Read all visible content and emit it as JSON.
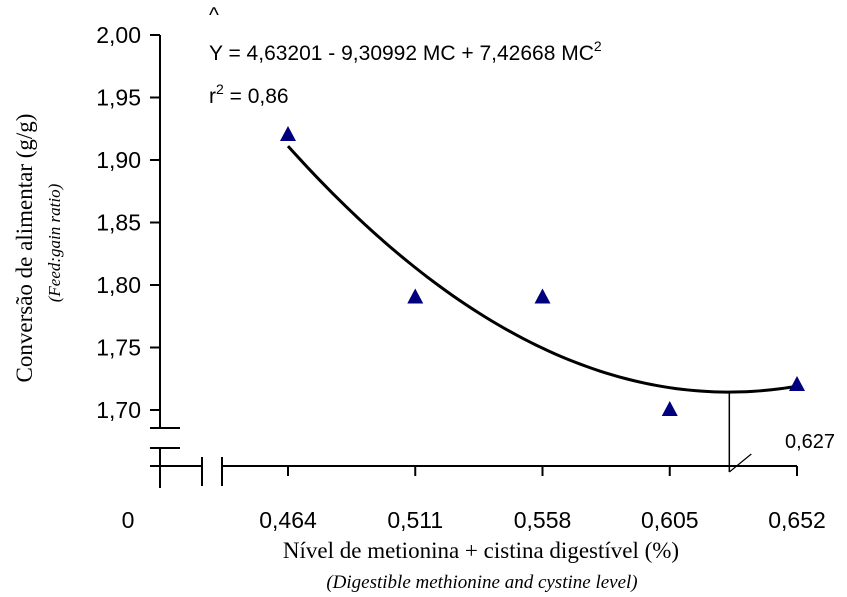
{
  "chart_data": {
    "type": "scatter",
    "title": "",
    "xlabel": "Nível de metionina + cistina digestível (%)",
    "xlabel_en": "(Digestible methionine and cystine level)",
    "ylabel": "Conversão de alimentar (g/g)",
    "ylabel_en": "(Feed:gain ratio)",
    "x_ticks": [
      "0",
      "0,464",
      "0,511",
      "0,558",
      "0,605",
      "0,652"
    ],
    "y_ticks": [
      "1,70",
      "1,75",
      "1,80",
      "1,85",
      "1,90",
      "1,95",
      "2,00"
    ],
    "xlim": [
      0.464,
      0.652
    ],
    "ylim": [
      1.7,
      2.0
    ],
    "axis_breaks": true,
    "marker": "triangle",
    "marker_color": "#00007f",
    "series": [
      {
        "x": [
          0.464,
          0.511,
          0.558,
          0.605,
          0.652
        ],
        "y": [
          1.92,
          1.79,
          1.79,
          1.7,
          1.72
        ]
      }
    ],
    "fit": {
      "model": "quadratic",
      "intercept": 4.63201,
      "linear": -9.30992,
      "quadratic": 7.42668,
      "x_range": [
        0.464,
        0.652
      ]
    },
    "equation": {
      "hat": "^",
      "text": "Y = 4,63201 - 9,30992 MC + 7,42668 MC",
      "superscript": "2"
    },
    "r2": {
      "prefix": "r",
      "superscript": "2",
      "text": " = 0,86"
    },
    "annotation": {
      "x": 0.627,
      "label": "0,627"
    }
  }
}
